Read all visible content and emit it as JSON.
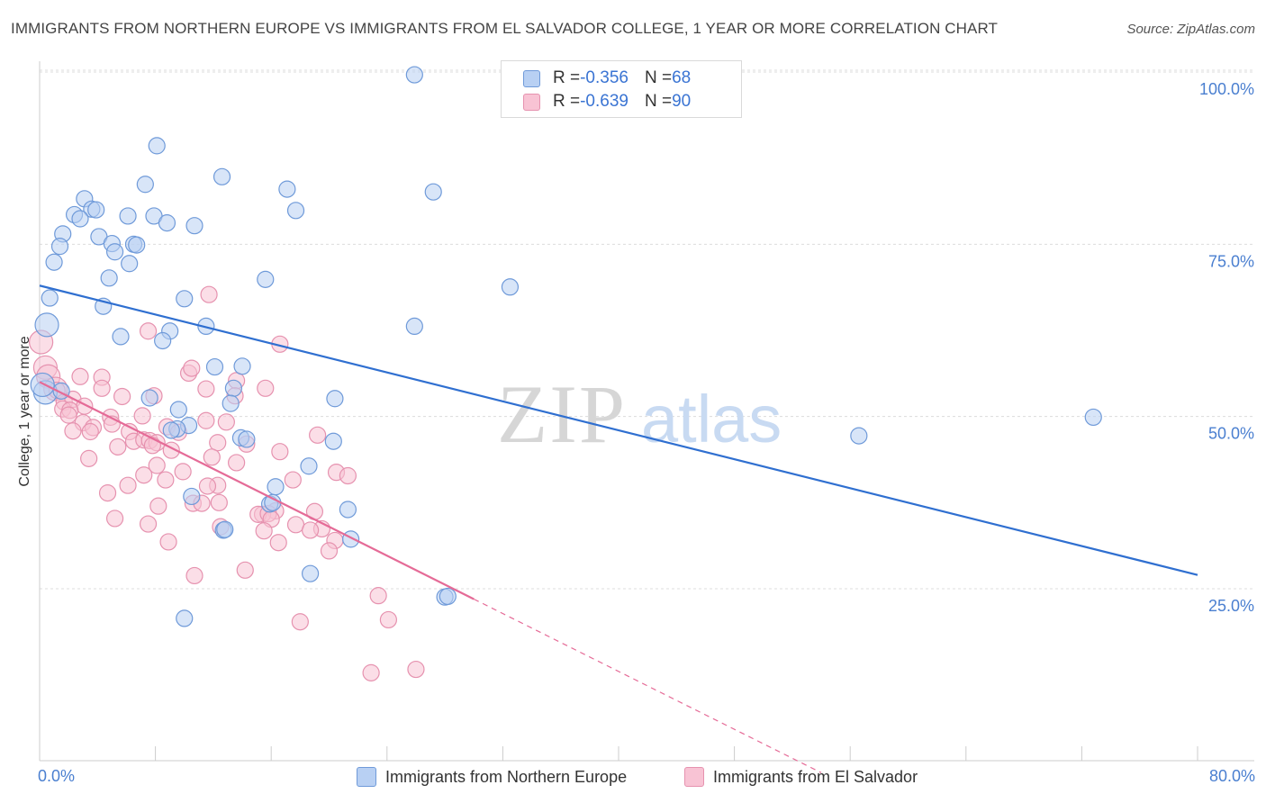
{
  "header": {
    "title": "IMMIGRANTS FROM NORTHERN EUROPE VS IMMIGRANTS FROM EL SALVADOR COLLEGE, 1 YEAR OR MORE CORRELATION CHART",
    "source": "Source: ZipAtlas.com"
  },
  "watermark": {
    "zip": "ZIP",
    "atlas": "atlas"
  },
  "legend_top": {
    "rows": [
      {
        "r_label": "R = ",
        "r_value": "-0.356",
        "n_label": "N = ",
        "n_value": "68"
      },
      {
        "r_label": "R = ",
        "r_value": "-0.639",
        "n_label": "N = ",
        "n_value": "90"
      }
    ]
  },
  "colors": {
    "blue_fill": "#b8d0f3",
    "blue_stroke": "#6f9ad9",
    "blue_line": "#2f6fd0",
    "pink_fill": "#f8c3d4",
    "pink_stroke": "#e692af",
    "pink_line": "#e56b97",
    "tick_label": "#4a7fd0",
    "grid": "#dcdcdc"
  },
  "chart_data": {
    "type": "scatter",
    "title": "IMMIGRANTS FROM NORTHERN EUROPE VS IMMIGRANTS FROM EL SALVADOR COLLEGE, 1 YEAR OR MORE CORRELATION CHART",
    "xlabel": "",
    "ylabel": "College, 1 year or more",
    "xlim": [
      0,
      80
    ],
    "ylim": [
      0,
      102
    ],
    "x_tick_labels": [
      "0.0%",
      "80.0%"
    ],
    "y_ticks": [
      {
        "value": 25,
        "label": "25.0%"
      },
      {
        "value": 50,
        "label": "50.0%"
      },
      {
        "value": 75,
        "label": "75.0%"
      },
      {
        "value": 100,
        "label": "100.0%"
      }
    ],
    "grid": true,
    "legend_position": "bottom",
    "series": [
      {
        "name": "Immigrants from Northern Europe",
        "color": "#b8d0f3",
        "trend": {
          "x": [
            0,
            80
          ],
          "y": [
            69.0,
            27.0
          ]
        },
        "points": [
          [
            25.9,
            99.6
          ],
          [
            8.1,
            89.3
          ],
          [
            12.6,
            84.8
          ],
          [
            7.3,
            83.7
          ],
          [
            17.1,
            83.0
          ],
          [
            27.2,
            82.6
          ],
          [
            3.1,
            81.6
          ],
          [
            17.7,
            79.9
          ],
          [
            3.6,
            80.1
          ],
          [
            3.9,
            80.0
          ],
          [
            2.4,
            79.3
          ],
          [
            6.1,
            79.1
          ],
          [
            2.8,
            78.7
          ],
          [
            7.9,
            79.1
          ],
          [
            8.8,
            78.1
          ],
          [
            10.7,
            77.7
          ],
          [
            1.6,
            76.5
          ],
          [
            4.1,
            76.1
          ],
          [
            5.0,
            75.1
          ],
          [
            6.5,
            75.0
          ],
          [
            6.7,
            74.9
          ],
          [
            1.4,
            74.7
          ],
          [
            5.2,
            73.9
          ],
          [
            6.2,
            72.2
          ],
          [
            1.0,
            72.4
          ],
          [
            15.6,
            69.9
          ],
          [
            32.5,
            68.8
          ],
          [
            4.8,
            70.1
          ],
          [
            10.0,
            67.1
          ],
          [
            0.7,
            67.2
          ],
          [
            4.4,
            66.0
          ],
          [
            0.5,
            63.3
          ],
          [
            9.0,
            62.4
          ],
          [
            11.5,
            63.1
          ],
          [
            25.9,
            63.1
          ],
          [
            5.6,
            61.6
          ],
          [
            8.5,
            61.0
          ],
          [
            12.1,
            57.2
          ],
          [
            14.0,
            57.3
          ],
          [
            13.4,
            54.1
          ],
          [
            7.6,
            52.7
          ],
          [
            20.4,
            52.6
          ],
          [
            9.6,
            51.0
          ],
          [
            0.4,
            53.5
          ],
          [
            72.8,
            49.9
          ],
          [
            10.3,
            48.7
          ],
          [
            9.5,
            48.2
          ],
          [
            56.6,
            47.2
          ],
          [
            13.9,
            46.9
          ],
          [
            14.3,
            46.7
          ],
          [
            20.3,
            46.4
          ],
          [
            13.2,
            51.9
          ],
          [
            18.6,
            42.8
          ],
          [
            16.3,
            39.8
          ],
          [
            10.5,
            38.4
          ],
          [
            15.9,
            37.3
          ],
          [
            21.3,
            36.5
          ],
          [
            12.7,
            33.5
          ],
          [
            21.5,
            32.2
          ],
          [
            18.7,
            27.2
          ],
          [
            10.0,
            20.7
          ],
          [
            28.0,
            23.8
          ],
          [
            28.2,
            23.9
          ],
          [
            0.2,
            54.6
          ],
          [
            1.5,
            53.7
          ],
          [
            12.8,
            33.6
          ],
          [
            9.1,
            48.0
          ],
          [
            16.1,
            37.5
          ]
        ]
      },
      {
        "name": "Immigrants from El Salvador",
        "color": "#f8c3d4",
        "trend": {
          "x": [
            0,
            30
          ],
          "y": [
            55.0,
            23.5
          ]
        },
        "trend_extension": {
          "x": [
            30,
            54
          ],
          "y": [
            23.5,
            -1.7
          ]
        },
        "points": [
          [
            0.1,
            60.8
          ],
          [
            0.4,
            57.1
          ],
          [
            0.6,
            55.8
          ],
          [
            11.7,
            67.7
          ],
          [
            7.5,
            62.4
          ],
          [
            16.6,
            60.5
          ],
          [
            2.8,
            55.8
          ],
          [
            4.3,
            55.7
          ],
          [
            10.3,
            56.3
          ],
          [
            1.1,
            54.0
          ],
          [
            4.3,
            54.1
          ],
          [
            10.5,
            57.0
          ],
          [
            13.6,
            55.2
          ],
          [
            11.5,
            54.0
          ],
          [
            15.6,
            54.1
          ],
          [
            1.2,
            53.8
          ],
          [
            1.7,
            52.1
          ],
          [
            2.3,
            52.5
          ],
          [
            5.7,
            52.9
          ],
          [
            7.9,
            53.0
          ],
          [
            13.5,
            53.0
          ],
          [
            3.1,
            51.5
          ],
          [
            1.6,
            51.1
          ],
          [
            2.1,
            50.9
          ],
          [
            2.0,
            50.2
          ],
          [
            4.9,
            49.9
          ],
          [
            7.1,
            50.1
          ],
          [
            11.5,
            49.4
          ],
          [
            12.9,
            49.2
          ],
          [
            3.0,
            49.1
          ],
          [
            3.7,
            48.4
          ],
          [
            5.0,
            48.9
          ],
          [
            8.8,
            48.5
          ],
          [
            2.3,
            47.9
          ],
          [
            3.5,
            47.8
          ],
          [
            6.2,
            47.8
          ],
          [
            9.6,
            47.7
          ],
          [
            19.2,
            47.3
          ],
          [
            6.5,
            46.4
          ],
          [
            7.2,
            46.6
          ],
          [
            7.6,
            46.5
          ],
          [
            12.3,
            46.2
          ],
          [
            14.3,
            46.0
          ],
          [
            8.1,
            46.2
          ],
          [
            7.8,
            45.8
          ],
          [
            5.4,
            45.6
          ],
          [
            9.1,
            45.1
          ],
          [
            16.6,
            44.9
          ],
          [
            3.4,
            43.9
          ],
          [
            11.9,
            44.1
          ],
          [
            13.6,
            43.3
          ],
          [
            8.1,
            42.9
          ],
          [
            9.9,
            42.0
          ],
          [
            7.2,
            41.5
          ],
          [
            20.5,
            41.9
          ],
          [
            21.3,
            41.4
          ],
          [
            8.7,
            40.8
          ],
          [
            17.5,
            40.8
          ],
          [
            6.1,
            40.0
          ],
          [
            12.3,
            40.0
          ],
          [
            11.6,
            39.9
          ],
          [
            4.7,
            38.9
          ],
          [
            10.6,
            37.4
          ],
          [
            11.2,
            37.4
          ],
          [
            12.4,
            37.5
          ],
          [
            8.2,
            37.0
          ],
          [
            16.3,
            36.3
          ],
          [
            15.4,
            35.8
          ],
          [
            19.0,
            36.2
          ],
          [
            15.1,
            35.8
          ],
          [
            15.8,
            35.9
          ],
          [
            5.2,
            35.2
          ],
          [
            7.5,
            34.4
          ],
          [
            17.7,
            34.3
          ],
          [
            16.0,
            35.1
          ],
          [
            19.5,
            33.7
          ],
          [
            12.5,
            34.0
          ],
          [
            15.5,
            33.4
          ],
          [
            18.7,
            33.5
          ],
          [
            8.9,
            31.8
          ],
          [
            16.5,
            31.7
          ],
          [
            20.4,
            32.0
          ],
          [
            20.0,
            30.5
          ],
          [
            14.2,
            27.7
          ],
          [
            10.7,
            26.9
          ],
          [
            23.4,
            24.0
          ],
          [
            18.0,
            20.2
          ],
          [
            24.1,
            20.5
          ],
          [
            22.9,
            12.8
          ],
          [
            26.0,
            13.3
          ]
        ]
      }
    ]
  }
}
